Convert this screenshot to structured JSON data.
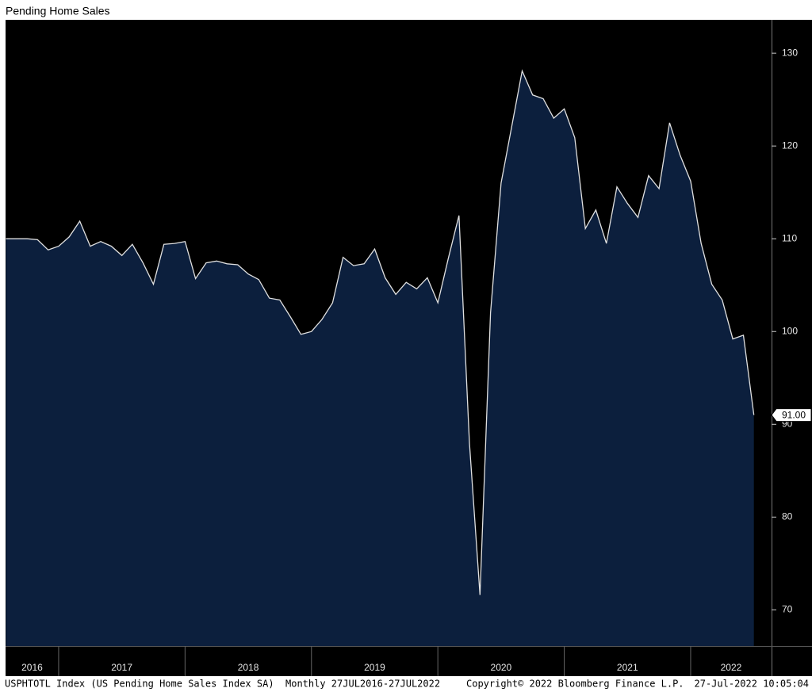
{
  "chart_data": {
    "type": "area",
    "title": "Pending Home Sales",
    "x": [
      2016.583,
      2016.667,
      2016.75,
      2016.833,
      2016.917,
      2017,
      2017.083,
      2017.167,
      2017.25,
      2017.333,
      2017.417,
      2017.5,
      2017.583,
      2017.667,
      2017.75,
      2017.833,
      2017.917,
      2018,
      2018.083,
      2018.167,
      2018.25,
      2018.333,
      2018.417,
      2018.5,
      2018.583,
      2018.667,
      2018.75,
      2018.833,
      2018.917,
      2019,
      2019.083,
      2019.167,
      2019.25,
      2019.333,
      2019.417,
      2019.5,
      2019.583,
      2019.667,
      2019.75,
      2019.833,
      2019.917,
      2020,
      2020.083,
      2020.167,
      2020.25,
      2020.333,
      2020.417,
      2020.5,
      2020.583,
      2020.667,
      2020.75,
      2020.833,
      2020.917,
      2021,
      2021.083,
      2021.167,
      2021.25,
      2021.333,
      2021.417,
      2021.5,
      2021.583,
      2021.667,
      2021.75,
      2021.833,
      2021.917,
      2022,
      2022.083,
      2022.167,
      2022.25,
      2022.333,
      2022.417,
      2022.5
    ],
    "values": [
      110,
      110,
      110,
      109.9,
      108.8,
      109.2,
      110.2,
      111.9,
      109.2,
      109.7,
      109.2,
      108.2,
      109.4,
      107.4,
      105.1,
      109.4,
      109.5,
      109.7,
      105.7,
      107.4,
      107.6,
      107.3,
      107.2,
      106.2,
      105.6,
      103.6,
      103.4,
      101.6,
      99.7,
      100,
      101.3,
      103.1,
      108,
      107.1,
      107.3,
      108.9,
      105.8,
      104,
      105.3,
      104.6,
      105.8,
      103.1,
      107.9,
      112.5,
      88,
      71.6,
      102,
      116,
      122,
      128.1,
      125.5,
      125.1,
      123,
      124,
      120.9,
      111.1,
      113.1,
      109.5,
      115.6,
      113.8,
      112.3,
      116.8,
      115.4,
      122.5,
      119,
      116.2,
      109.5,
      105.1,
      103.4,
      99.2,
      99.6,
      91
    ],
    "value_labels": [
      null,
      null,
      null,
      null,
      null,
      null,
      null,
      null,
      null,
      null,
      null,
      null,
      null,
      null,
      null,
      null,
      null,
      null,
      null,
      null,
      null,
      null,
      null,
      null,
      null,
      null,
      null,
      null,
      null,
      null,
      null,
      null,
      null,
      null,
      null,
      null,
      null,
      null,
      null,
      null,
      null,
      null,
      null,
      null,
      null,
      null,
      null,
      null,
      null,
      null,
      null,
      null,
      null,
      null,
      null,
      null,
      null,
      null,
      null,
      null,
      null,
      null,
      null,
      null,
      null,
      null,
      null,
      null,
      null,
      null,
      null,
      "91.00"
    ],
    "color": "#0c1f3d",
    "line_color": "#e0e0e0",
    "xlim": [
      2016.58,
      2022.64
    ],
    "xticks": [
      2017,
      2018,
      2019,
      2020,
      2021,
      2022
    ],
    "year_labels": [
      "2016",
      "2017",
      "2018",
      "2019",
      "2020",
      "2021",
      "2022"
    ],
    "ylim": [
      66.1,
      133.6
    ],
    "yticks": [
      70,
      80,
      90,
      100,
      110,
      120,
      130
    ],
    "footer": {
      "source": "USPHTOTL Index (US Pending Home Sales Index SA)  Monthly 27JUL2016-27JUL2022",
      "copyright": "Copyright© 2022 Bloomberg Finance L.P.",
      "timestamp": "27-Jul-2022 10:05:04"
    }
  }
}
